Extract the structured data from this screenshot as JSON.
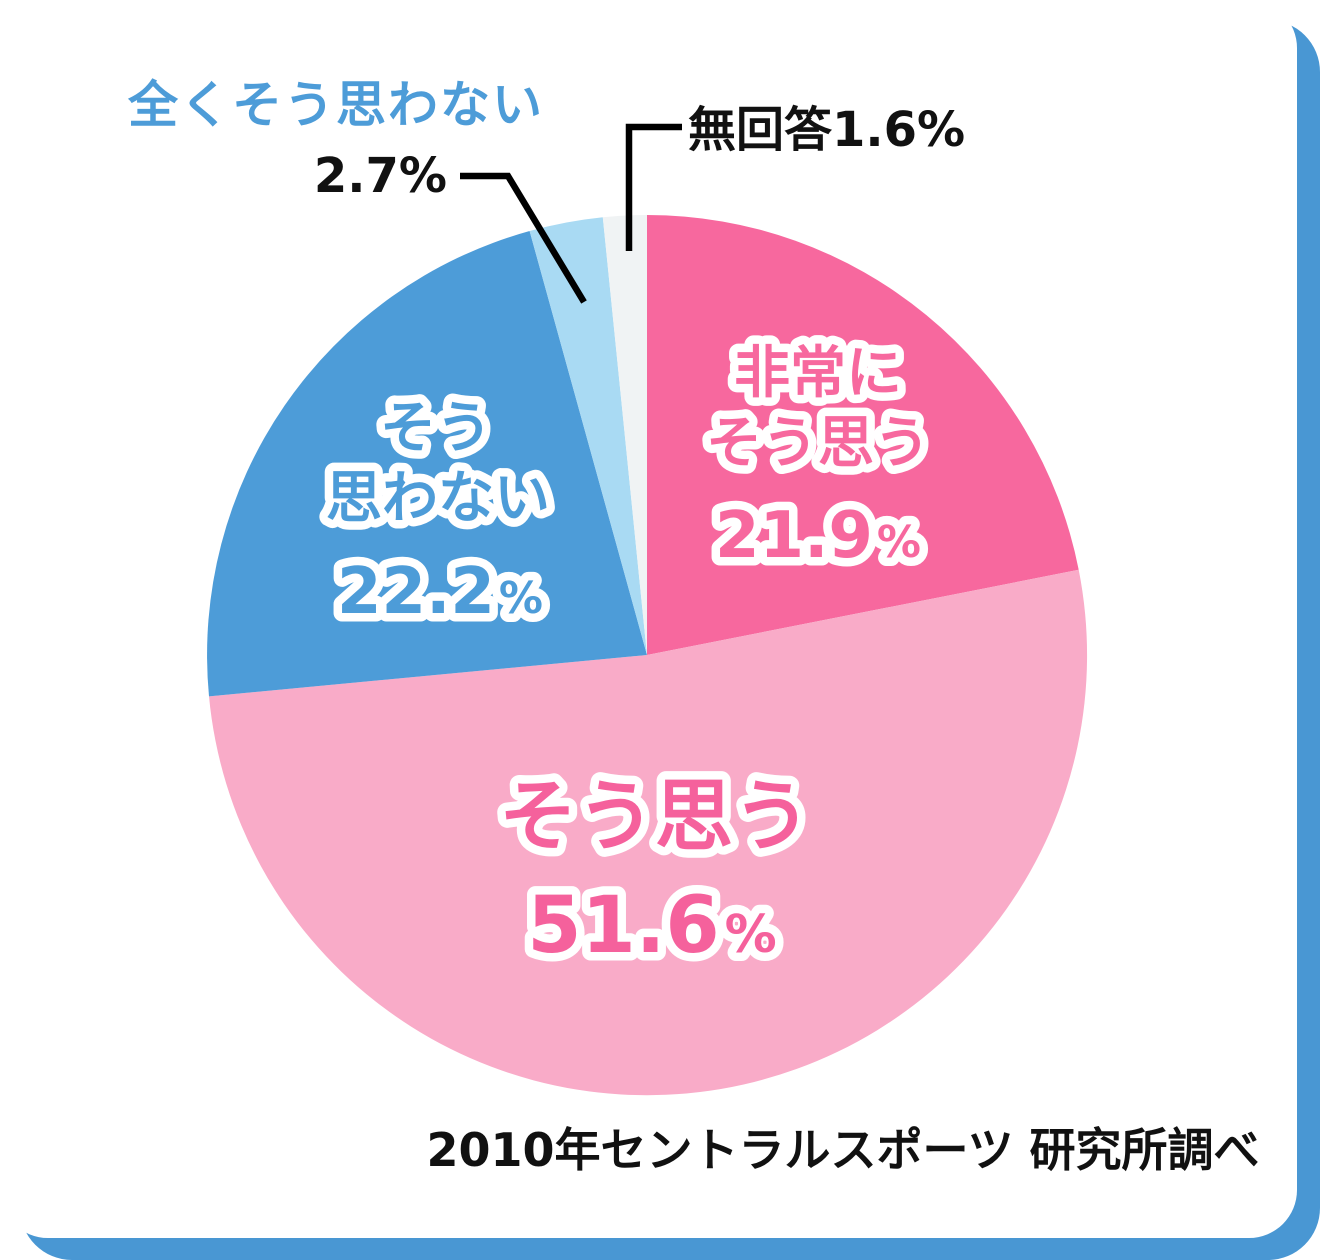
{
  "page": {
    "card_color": "#ffffff",
    "frame_color": "#4997d3"
  },
  "chart_data": {
    "type": "pie",
    "title": "",
    "units": "%",
    "rotation": "starts at 12 o'clock, clockwise",
    "legend": "none (labels inside slices and callouts)",
    "series": [
      {
        "name": "非常にそう思う",
        "value": 21.9,
        "color": "#f7689e",
        "label_line1": "非常に",
        "label_line2": "そう思う",
        "pct": "21.9",
        "pct_sign": "%"
      },
      {
        "name": "そう思う",
        "value": 51.6,
        "color": "#f9abc8",
        "label_line1": "そう思う",
        "pct": "51.6",
        "pct_sign": "%"
      },
      {
        "name": "そう思わない",
        "value": 22.2,
        "color": "#4d9cd8",
        "label_line1": "そう",
        "label_line2": "思わない",
        "pct": "22.2",
        "pct_sign": "%"
      },
      {
        "name": "全くそう思わない",
        "value": 2.7,
        "color": "#a9daf3"
      },
      {
        "name": "無回答",
        "value": 1.6,
        "color": "#f0f3f4"
      }
    ],
    "callouts": {
      "strongly_disagree_label": "全くそう思わない",
      "strongly_disagree_pct": "2.7%",
      "no_answer_label": "無回答1.6%"
    },
    "source_note": "2010年セントラルスポーツ 研究所調べ",
    "label_colors": {
      "strongly_agree_text": "#f7689e",
      "agree_text": "#f5619c",
      "disagree_text": "#4d9cd8",
      "callout_heading": "#4d9cd8",
      "callout_value": "#111111"
    }
  }
}
